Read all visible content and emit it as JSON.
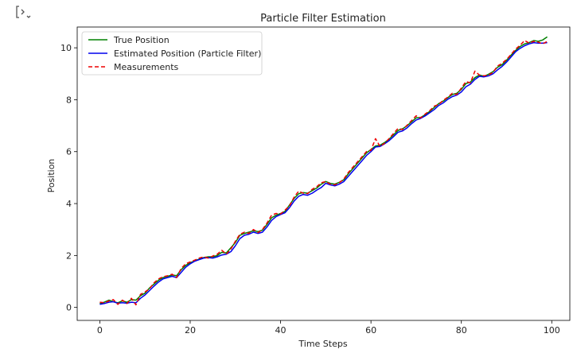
{
  "ui": {
    "output_toggle_icon": "collapse-output-icon"
  },
  "chart_data": {
    "type": "line",
    "title": "Particle Filter Estimation",
    "xlabel": "Time Steps",
    "ylabel": "Position",
    "xlim": [
      -5,
      104
    ],
    "ylim": [
      -0.5,
      10.8
    ],
    "xticks": [
      0,
      20,
      40,
      60,
      80,
      100
    ],
    "yticks": [
      0,
      2,
      4,
      6,
      8,
      10
    ],
    "legend_position": "upper-left",
    "x": [
      0,
      1,
      2,
      3,
      4,
      5,
      6,
      7,
      8,
      9,
      10,
      11,
      12,
      13,
      14,
      15,
      16,
      17,
      18,
      19,
      20,
      21,
      22,
      23,
      24,
      25,
      26,
      27,
      28,
      29,
      30,
      31,
      32,
      33,
      34,
      35,
      36,
      37,
      38,
      39,
      40,
      41,
      42,
      43,
      44,
      45,
      46,
      47,
      48,
      49,
      50,
      51,
      52,
      53,
      54,
      55,
      56,
      57,
      58,
      59,
      60,
      61,
      62,
      63,
      64,
      65,
      66,
      67,
      68,
      69,
      70,
      71,
      72,
      73,
      74,
      75,
      76,
      77,
      78,
      79,
      80,
      81,
      82,
      83,
      84,
      85,
      86,
      87,
      88,
      89,
      90,
      91,
      92,
      93,
      94,
      95,
      96,
      97,
      98,
      99
    ],
    "series": [
      {
        "name": "True Position",
        "color": "#008000",
        "style": "solid",
        "values": [
          0.15,
          0.2,
          0.28,
          0.22,
          0.18,
          0.25,
          0.2,
          0.3,
          0.28,
          0.45,
          0.55,
          0.75,
          0.9,
          1.05,
          1.15,
          1.2,
          1.25,
          1.22,
          1.45,
          1.62,
          1.72,
          1.8,
          1.86,
          1.92,
          1.95,
          1.95,
          2.0,
          2.12,
          2.1,
          2.3,
          2.5,
          2.78,
          2.85,
          2.9,
          2.95,
          2.92,
          2.98,
          3.2,
          3.45,
          3.55,
          3.62,
          3.7,
          3.95,
          4.2,
          4.38,
          4.42,
          4.4,
          4.5,
          4.6,
          4.75,
          4.85,
          4.78,
          4.75,
          4.82,
          4.92,
          5.15,
          5.35,
          5.55,
          5.75,
          5.95,
          6.08,
          6.22,
          6.25,
          6.35,
          6.48,
          6.65,
          6.82,
          6.88,
          7.0,
          7.15,
          7.3,
          7.32,
          7.42,
          7.55,
          7.7,
          7.85,
          7.95,
          8.08,
          8.2,
          8.25,
          8.4,
          8.62,
          8.68,
          8.85,
          8.95,
          8.9,
          8.98,
          9.08,
          9.25,
          9.35,
          9.52,
          9.72,
          9.9,
          10.05,
          10.15,
          10.2,
          10.28,
          10.25,
          10.3,
          10.42
        ]
      },
      {
        "name": "Estimated Position (Particle Filter)",
        "color": "#0000ee",
        "style": "solid",
        "values": [
          0.12,
          0.15,
          0.2,
          0.22,
          0.16,
          0.18,
          0.16,
          0.2,
          0.18,
          0.35,
          0.48,
          0.65,
          0.82,
          0.98,
          1.1,
          1.15,
          1.2,
          1.15,
          1.35,
          1.55,
          1.68,
          1.78,
          1.84,
          1.9,
          1.92,
          1.9,
          1.95,
          2.02,
          2.05,
          2.15,
          2.38,
          2.65,
          2.78,
          2.82,
          2.9,
          2.85,
          2.9,
          3.1,
          3.35,
          3.5,
          3.58,
          3.65,
          3.85,
          4.1,
          4.28,
          4.35,
          4.32,
          4.4,
          4.52,
          4.62,
          4.78,
          4.72,
          4.68,
          4.75,
          4.85,
          5.05,
          5.25,
          5.45,
          5.65,
          5.85,
          6.0,
          6.18,
          6.2,
          6.3,
          6.42,
          6.58,
          6.75,
          6.8,
          6.92,
          7.08,
          7.22,
          7.28,
          7.38,
          7.5,
          7.62,
          7.78,
          7.88,
          8.02,
          8.12,
          8.18,
          8.3,
          8.5,
          8.6,
          8.78,
          8.9,
          8.88,
          8.92,
          9.0,
          9.15,
          9.28,
          9.45,
          9.65,
          9.85,
          9.98,
          10.08,
          10.15,
          10.2,
          10.18,
          10.18,
          10.2
        ]
      },
      {
        "name": "Measurements",
        "color": "#ee0000",
        "style": "dashed",
        "values": [
          0.2,
          0.18,
          0.25,
          0.3,
          0.12,
          0.28,
          0.15,
          0.35,
          0.1,
          0.5,
          0.6,
          0.72,
          0.95,
          1.1,
          1.18,
          1.22,
          1.28,
          1.15,
          1.5,
          1.68,
          1.75,
          1.82,
          1.9,
          1.95,
          1.9,
          1.98,
          2.05,
          2.2,
          2.05,
          2.25,
          2.55,
          2.82,
          2.9,
          2.85,
          3.0,
          2.88,
          3.0,
          3.25,
          3.55,
          3.62,
          3.6,
          3.75,
          3.92,
          4.25,
          4.48,
          4.4,
          4.38,
          4.55,
          4.65,
          4.8,
          4.85,
          4.75,
          4.72,
          4.8,
          4.95,
          5.2,
          5.4,
          5.6,
          5.8,
          6.0,
          6.05,
          6.5,
          6.2,
          6.32,
          6.5,
          6.7,
          6.9,
          6.85,
          7.02,
          7.2,
          7.38,
          7.3,
          7.45,
          7.58,
          7.75,
          7.82,
          7.98,
          8.1,
          8.25,
          8.2,
          8.45,
          8.7,
          8.65,
          9.1,
          8.95,
          8.92,
          8.95,
          9.05,
          9.3,
          9.4,
          9.55,
          9.75,
          9.95,
          10.1,
          10.28,
          10.18,
          10.25,
          10.22,
          10.15,
          10.25
        ]
      }
    ]
  }
}
